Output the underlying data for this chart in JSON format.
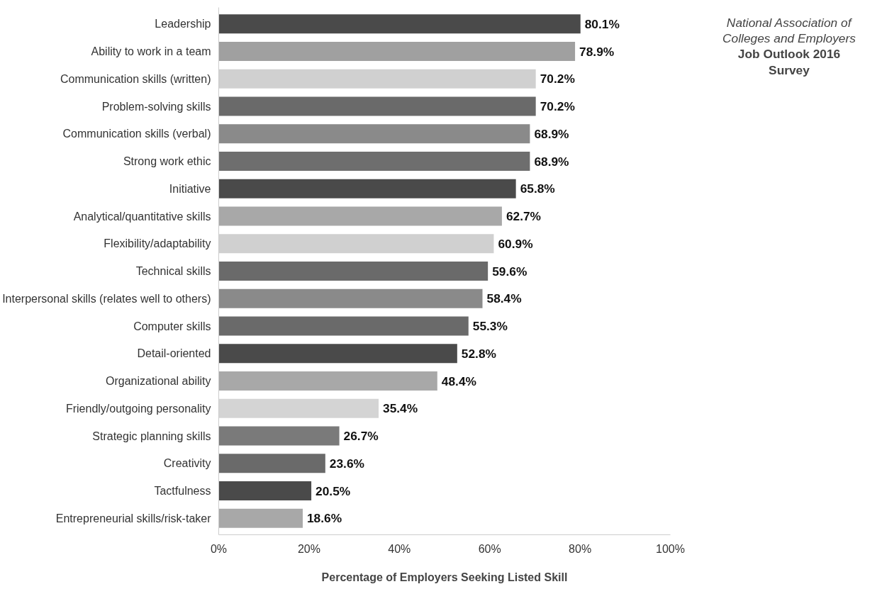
{
  "chart_data": {
    "type": "bar",
    "orientation": "horizontal",
    "title": "National Association of Colleges and Employers",
    "subtitle": "Job Outlook 2016 Survey",
    "xlabel": "Percentage of Employers Seeking Listed Skill",
    "categories": [
      "Leadership",
      "Ability to work in a team",
      "Communication skills (written)",
      "Problem-solving skills",
      "Communication skills (verbal)",
      "Strong work ethic",
      "Initiative",
      "Analytical/quantitative skills",
      "Flexibility/adaptability",
      "Technical skills",
      "Interpersonal skills (relates well to others)",
      "Computer skills",
      "Detail-oriented",
      "Organizational ability",
      "Friendly/outgoing personality",
      "Strategic planning skills",
      "Creativity",
      "Tactfulness",
      "Entrepreneurial skills/risk-taker"
    ],
    "values": [
      80.1,
      78.9,
      70.2,
      70.2,
      68.9,
      68.9,
      65.8,
      62.7,
      60.9,
      59.6,
      58.4,
      55.3,
      52.8,
      48.4,
      35.4,
      26.7,
      23.6,
      20.5,
      18.6
    ],
    "value_labels": [
      "80.1%",
      "78.9%",
      "70.2%",
      "70.2%",
      "68.9%",
      "68.9%",
      "65.8%",
      "62.7%",
      "60.9%",
      "59.6%",
      "58.4%",
      "55.3%",
      "52.8%",
      "48.4%",
      "35.4%",
      "26.7%",
      "23.6%",
      "20.5%",
      "18.6%"
    ],
    "colors": [
      "#4a4a4a",
      "#a0a0a0",
      "#d0d0d0",
      "#6a6a6a",
      "#8a8a8a",
      "#6e6e6e",
      "#4a4a4a",
      "#a8a8a8",
      "#d0d0d0",
      "#6a6a6a",
      "#8a8a8a",
      "#6a6a6a",
      "#4a4a4a",
      "#a8a8a8",
      "#d4d4d4",
      "#7a7a7a",
      "#6a6a6a",
      "#4a4a4a",
      "#a8a8a8"
    ],
    "xlim": [
      0,
      100
    ],
    "xticks": [
      {
        "value": 0,
        "label": "0%"
      },
      {
        "value": 20,
        "label": "20%"
      },
      {
        "value": 40,
        "label": "40%"
      },
      {
        "value": 60,
        "label": "60%"
      },
      {
        "value": 80,
        "label": "80%"
      },
      {
        "value": 100,
        "label": "100%"
      }
    ],
    "grid": false
  }
}
